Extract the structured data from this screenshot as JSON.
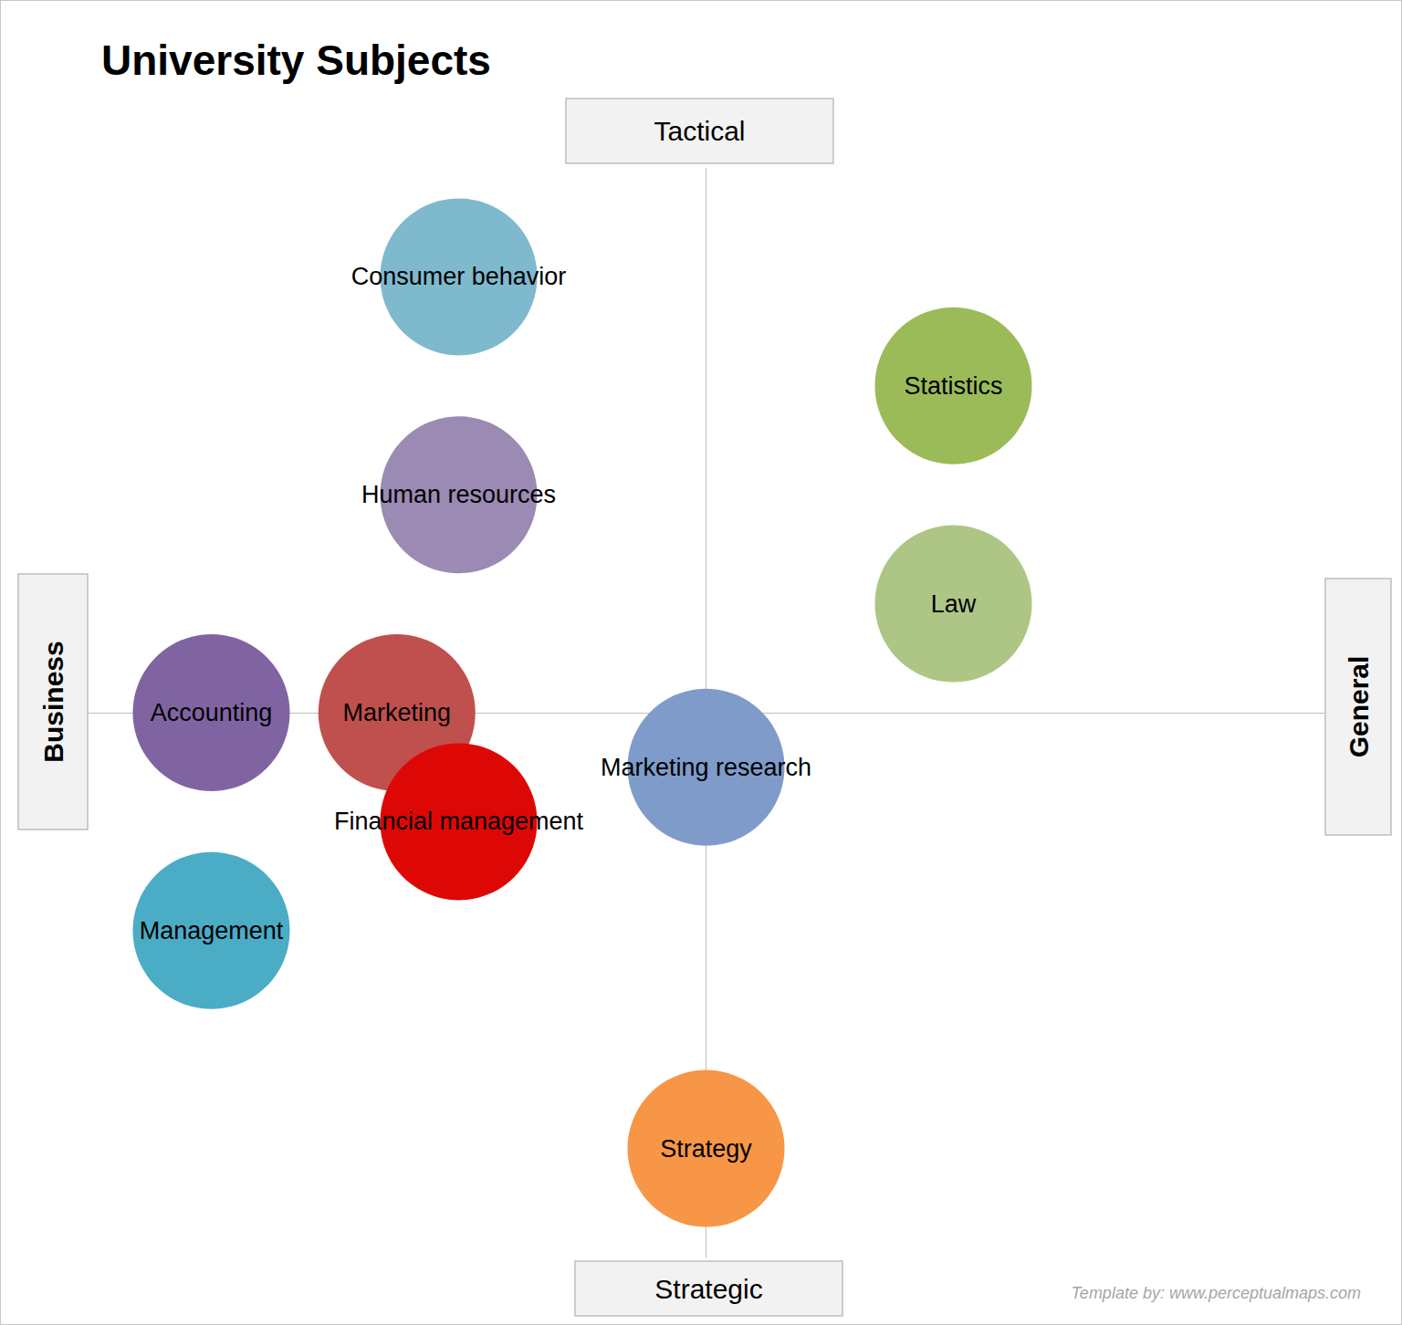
{
  "chart_data": {
    "type": "scatter",
    "title": "University Subjects",
    "axis_labels": {
      "left": "Business",
      "right": "General",
      "top": "Tactical",
      "bottom": "Strategic"
    },
    "annotations": [
      "Template by: www.perceptualmaps.com"
    ],
    "labels": [
      "Consumer behavior",
      "Human resources",
      "Accounting",
      "Marketing",
      "Financial management",
      "Management",
      "Marketing research",
      "Strategy",
      "Statistics",
      "Law"
    ],
    "x": [
      -4,
      -4,
      -8,
      -5,
      -4,
      -8,
      0,
      0,
      4,
      4
    ],
    "y": [
      8,
      4,
      0,
      0,
      -2,
      -4,
      -1,
      -8,
      6,
      2
    ],
    "colors": [
      "#7fb9ce",
      "#9b8ab3",
      "#8064a2",
      "#c0504d",
      "#dd0806",
      "#4bacc6",
      "#7f9bc9",
      "#f79646",
      "#9bbb59",
      "#aec685"
    ],
    "xlim": [
      -10,
      10
    ],
    "ylim": [
      -10,
      10
    ],
    "tick_labels": false,
    "grid": false
  }
}
